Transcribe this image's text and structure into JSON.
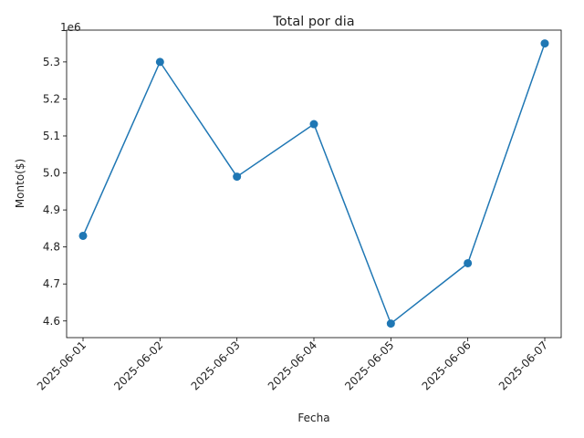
{
  "chart_data": {
    "type": "line",
    "title": "Total por dia",
    "xlabel": "Fecha",
    "ylabel": "Monto($)",
    "y_offset_label": "1e6",
    "y_scale_factor": 1000000,
    "x": [
      "2025-06-01",
      "2025-06-02",
      "2025-06-03",
      "2025-06-04",
      "2025-06-05",
      "2025-06-06",
      "2025-06-07"
    ],
    "series": [
      {
        "values": [
          4830000,
          5300000,
          4990000,
          5132000,
          4593000,
          4756000,
          5350000
        ],
        "color": "#1f77b4"
      }
    ],
    "yticks": [
      "4.6",
      "4.7",
      "4.8",
      "4.9",
      "5.0",
      "5.1",
      "5.2",
      "5.3"
    ],
    "ylim": [
      4555000,
      5386000
    ],
    "grid": false,
    "marker": "circle"
  }
}
